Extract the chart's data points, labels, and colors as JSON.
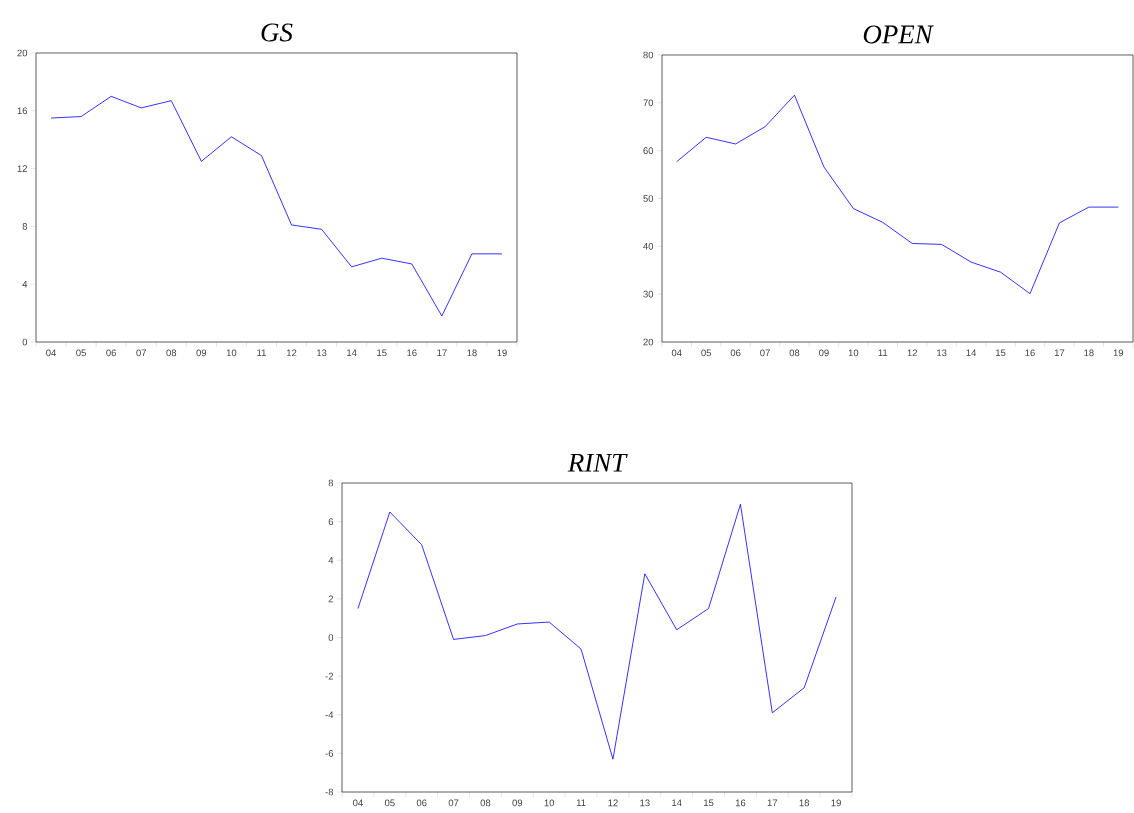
{
  "chart_data": [
    {
      "type": "line",
      "title": "GS",
      "categories": [
        "04",
        "05",
        "06",
        "07",
        "08",
        "09",
        "10",
        "11",
        "12",
        "13",
        "14",
        "15",
        "16",
        "17",
        "18",
        "19"
      ],
      "color": "#0000ff",
      "values": [
        15.5,
        15.6,
        17.0,
        16.2,
        16.7,
        12.5,
        14.2,
        12.9,
        8.1,
        7.8,
        5.2,
        5.8,
        5.4,
        1.8,
        6.1,
        6.1
      ],
      "ylim": [
        0,
        20
      ],
      "yticks": [
        0,
        4,
        8,
        12,
        16,
        20
      ]
    },
    {
      "type": "line",
      "title": "OPEN",
      "categories": [
        "04",
        "05",
        "06",
        "07",
        "08",
        "09",
        "10",
        "11",
        "12",
        "13",
        "14",
        "15",
        "16",
        "17",
        "18",
        "19"
      ],
      "color": "#0000ff",
      "values": [
        57.7,
        62.8,
        61.4,
        65.0,
        71.6,
        56.6,
        47.9,
        45.0,
        40.6,
        40.4,
        36.7,
        34.6,
        30.1,
        44.9,
        48.2,
        48.2
      ],
      "ylim": [
        20,
        80
      ],
      "yticks": [
        20,
        30,
        40,
        50,
        60,
        70,
        80
      ]
    },
    {
      "type": "line",
      "title": "RINT",
      "categories": [
        "04",
        "05",
        "06",
        "07",
        "08",
        "09",
        "10",
        "11",
        "12",
        "13",
        "14",
        "15",
        "16",
        "17",
        "18",
        "19"
      ],
      "color": "#0000ff",
      "values": [
        1.5,
        6.5,
        4.8,
        -0.1,
        0.1,
        0.7,
        0.8,
        -0.6,
        -6.3,
        3.3,
        0.4,
        1.5,
        6.9,
        -3.9,
        -2.6,
        2.1
      ],
      "ylim": [
        -8,
        8
      ],
      "yticks": [
        -8,
        -6,
        -4,
        -2,
        0,
        2,
        4,
        6,
        8
      ]
    }
  ]
}
